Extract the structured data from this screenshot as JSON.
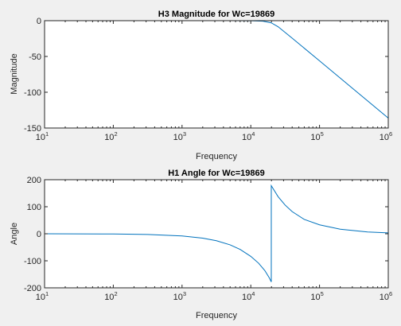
{
  "chart_data": [
    {
      "type": "line",
      "title": "H3 Magnitude for Wc=19869",
      "xlabel": "Frequency",
      "ylabel": "Magnitude",
      "xscale": "log",
      "xlim": [
        10,
        1000000
      ],
      "ylim": [
        -150,
        0
      ],
      "xticks": [
        10,
        100,
        1000,
        10000,
        100000,
        1000000
      ],
      "xtick_labels": [
        {
          "base": "10",
          "exp": "1"
        },
        {
          "base": "10",
          "exp": "2"
        },
        {
          "base": "10",
          "exp": "3"
        },
        {
          "base": "10",
          "exp": "4"
        },
        {
          "base": "10",
          "exp": "5"
        },
        {
          "base": "10",
          "exp": "6"
        }
      ],
      "yticks": [
        0,
        -50,
        -100,
        -150
      ],
      "ytick_labels": [
        "0",
        "-50",
        "-100",
        "-150"
      ],
      "grid": false,
      "line_color": "#0072bd",
      "series": [
        {
          "x": [
            10,
            100,
            1000,
            5000,
            10000,
            15000,
            19869,
            25000,
            40000,
            100000,
            300000,
            1000000
          ],
          "y": [
            0,
            0,
            0,
            0,
            -0.1,
            -0.7,
            -3,
            -8.5,
            -24.5,
            -56.1,
            -94.3,
            -136.1
          ]
        }
      ]
    },
    {
      "type": "line",
      "title": "H1 Angle for Wc=19869",
      "xlabel": "Frequency",
      "ylabel": "Angle",
      "xscale": "log",
      "xlim": [
        10,
        1000000
      ],
      "ylim": [
        -200,
        200
      ],
      "xticks": [
        10,
        100,
        1000,
        10000,
        100000,
        1000000
      ],
      "xtick_labels": [
        {
          "base": "10",
          "exp": "1"
        },
        {
          "base": "10",
          "exp": "2"
        },
        {
          "base": "10",
          "exp": "3"
        },
        {
          "base": "10",
          "exp": "4"
        },
        {
          "base": "10",
          "exp": "5"
        },
        {
          "base": "10",
          "exp": "6"
        }
      ],
      "yticks": [
        200,
        100,
        0,
        -100,
        -200
      ],
      "ytick_labels": [
        "200",
        "100",
        "0",
        "-100",
        "-200"
      ],
      "grid": false,
      "line_color": "#0072bd",
      "series": [
        {
          "x": [
            10,
            100,
            316,
            1000,
            2000,
            3162,
            5000,
            7000,
            10000,
            13000,
            16000,
            18500,
            19869,
            19869,
            21000,
            25000,
            31623,
            40000,
            60000,
            100000,
            200000,
            500000,
            1000000
          ],
          "y": [
            -0.1,
            -0.8,
            -2.6,
            -8.1,
            -16.2,
            -25.8,
            -41,
            -58,
            -83.6,
            -109,
            -136,
            -162,
            -178,
            178,
            168,
            137,
            106,
            82,
            53,
            33,
            17,
            6.8,
            3.4
          ]
        }
      ]
    }
  ]
}
